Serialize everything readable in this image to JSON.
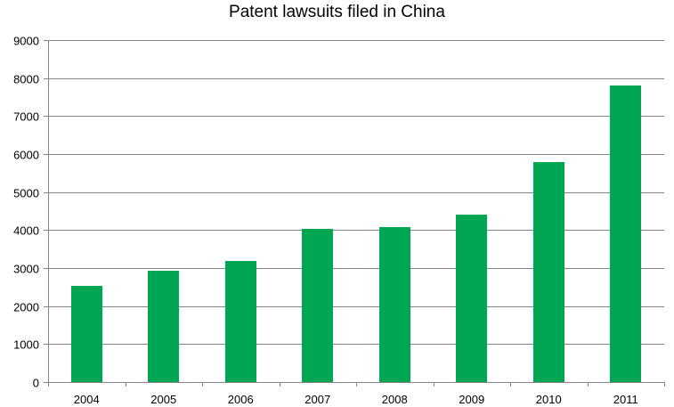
{
  "chart_data": {
    "type": "bar",
    "title": "Patent lawsuits filed in China",
    "xlabel": "",
    "ylabel": "",
    "categories": [
      "2004",
      "2005",
      "2006",
      "2007",
      "2008",
      "2009",
      "2010",
      "2011"
    ],
    "series": [
      {
        "values": [
          2530,
          2930,
          3190,
          4020,
          4080,
          4410,
          5790,
          7810
        ],
        "color": "#00A651"
      }
    ],
    "ylim": [
      0,
      9000
    ],
    "yticks": [
      0,
      1000,
      2000,
      3000,
      4000,
      5000,
      6000,
      7000,
      8000,
      9000
    ],
    "grid": true,
    "legend": "none",
    "colors": {
      "bar": "#00A651",
      "grid": "#868686",
      "axis": "#868686",
      "text": "#000000"
    }
  }
}
